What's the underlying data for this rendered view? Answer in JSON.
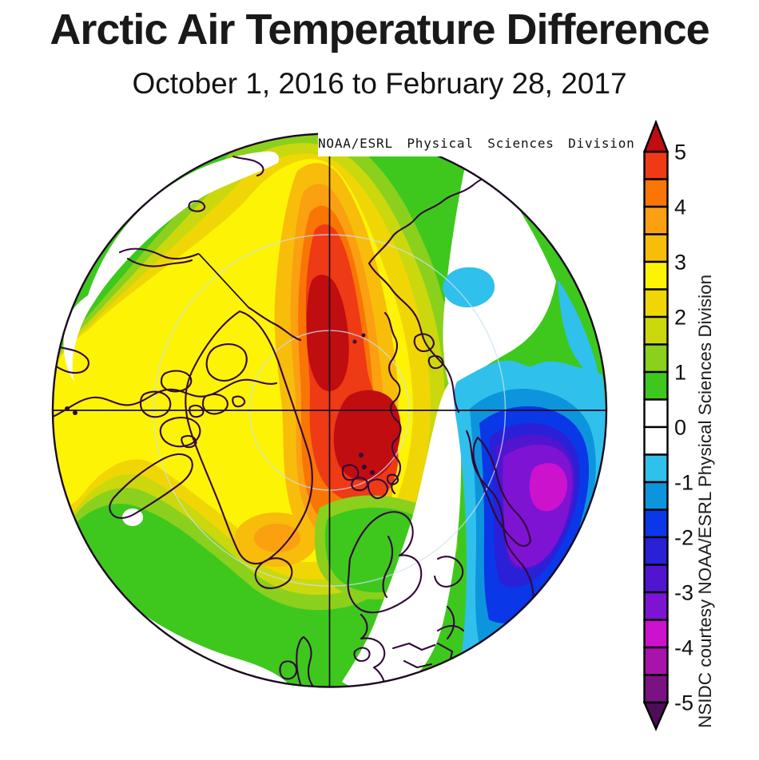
{
  "header": {
    "title": "Arctic Air Temperature Difference",
    "subtitle": "October 1, 2016 to February 28, 2017"
  },
  "map": {
    "overlay_label": "NOAA/ESRL Physical Sciences Division",
    "side_credit": "NSIDC courtesy NOAA/ESRL Physical Sciences Division"
  },
  "colorbar": {
    "ticks": [
      {
        "value": 5,
        "label": "5"
      },
      {
        "value": 4,
        "label": "4"
      },
      {
        "value": 3,
        "label": "3"
      },
      {
        "value": 2,
        "label": "2"
      },
      {
        "value": 1,
        "label": "1"
      },
      {
        "value": 0,
        "label": "0"
      },
      {
        "value": -1,
        "label": "-1"
      },
      {
        "value": -2,
        "label": "-2"
      },
      {
        "value": -3,
        "label": "-3"
      },
      {
        "value": -4,
        "label": "-4"
      },
      {
        "value": -5,
        "label": "-5"
      }
    ],
    "segments_top_to_bottom": [
      "p45",
      "p40",
      "p35",
      "p30",
      "p25",
      "p20",
      "p15",
      "p10",
      "p05",
      "zero",
      "zero",
      "n05",
      "n10",
      "n15",
      "n20",
      "n25",
      "n30",
      "n35",
      "n40",
      "n45"
    ],
    "arrow_above": "gt5",
    "arrow_below": "lt5"
  },
  "palette": {
    "gt5": "#bf0d10",
    "p45": "#ee3a15",
    "p40": "#f97506",
    "p35": "#fba011",
    "p30": "#f8bc0b",
    "p25": "#fdf405",
    "p20": "#f1d606",
    "p15": "#cbd80e",
    "p10": "#8bd01d",
    "p05": "#3ec81e",
    "zero": "#ffffff",
    "n05": "#30c0ec",
    "n10": "#0c95dc",
    "n15": "#0a37e7",
    "n20": "#2a20d7",
    "n25": "#5115cf",
    "n30": "#7e13d4",
    "n35": "#cd12cd",
    "n40": "#a813ab",
    "n45": "#7c1184",
    "lt5": "#4d0e57",
    "coastline_ink": "#33093a",
    "graticule_line": "#190b1d",
    "latitude_circle": "#c9e2f0",
    "rim": "#1b0a1f"
  }
}
